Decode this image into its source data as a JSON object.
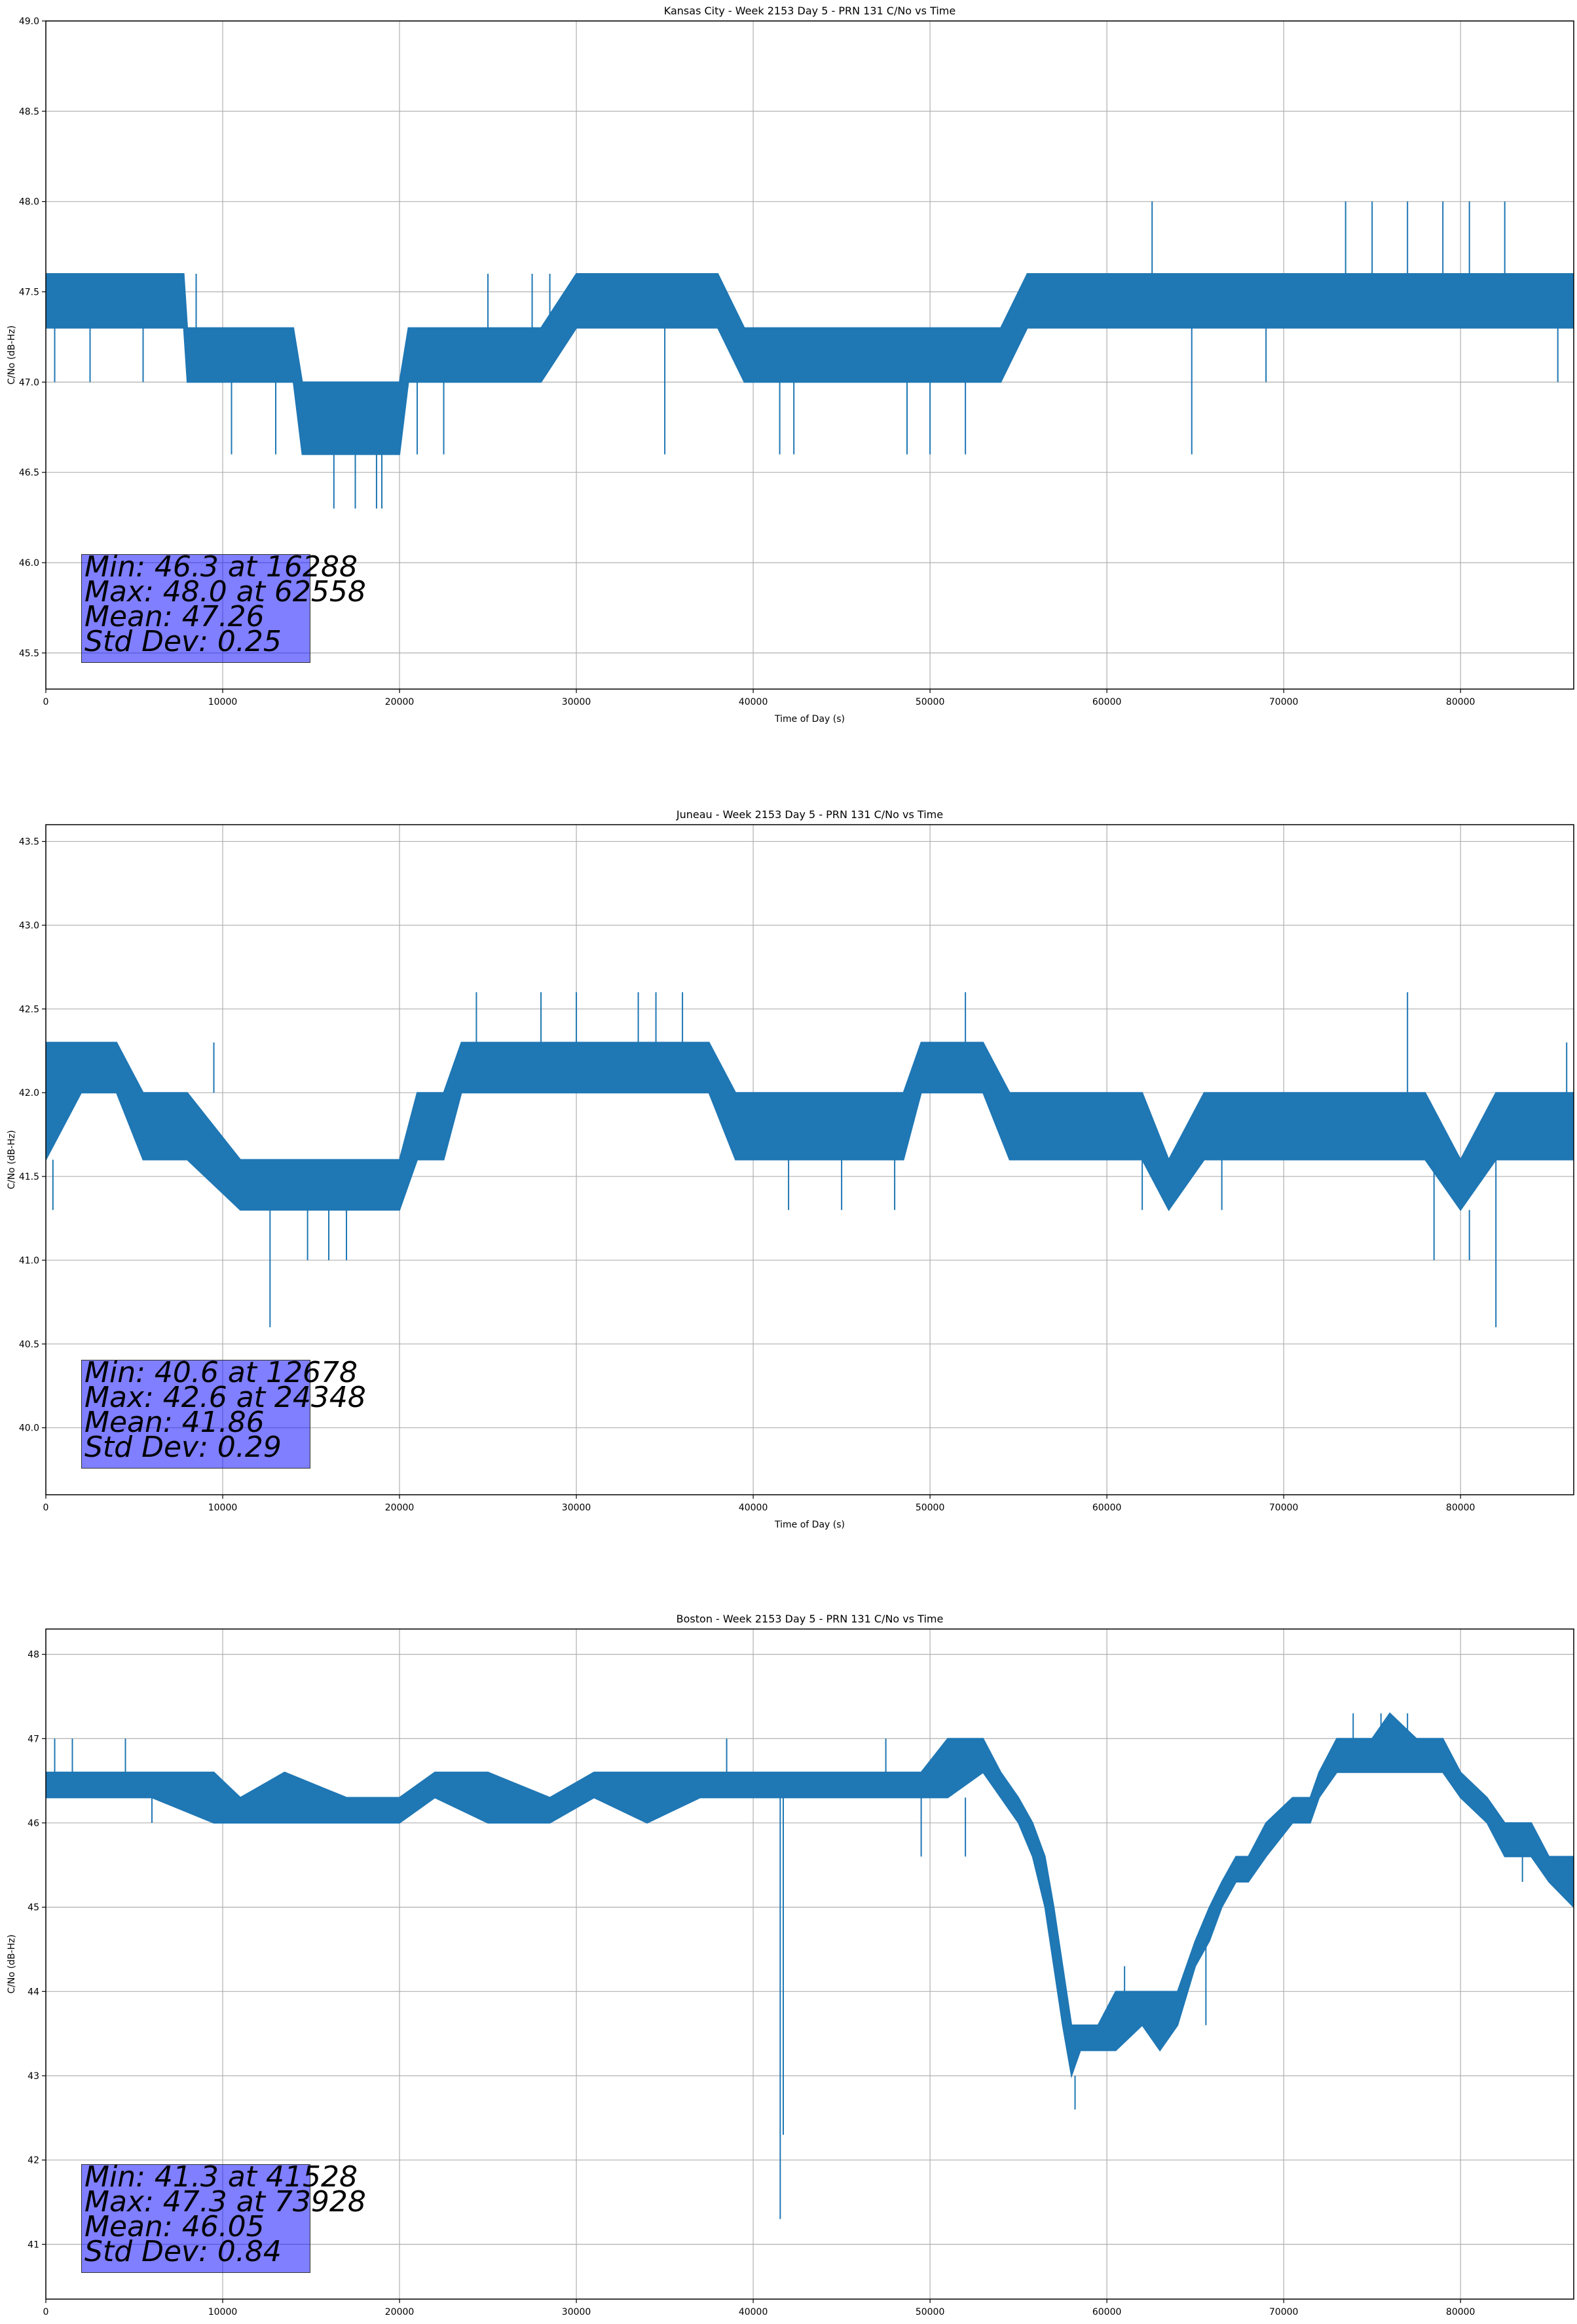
{
  "chart_data": [
    {
      "type": "line",
      "title": "Kansas City - Week 2153 Day 5 - PRN 131 C/No vs Time",
      "xlabel": "Time of Day (s)",
      "ylabel": "C/No (dB-Hz)",
      "xlim": [
        0,
        86400
      ],
      "ylim": [
        45.3,
        49.0
      ],
      "xticks": [
        0,
        10000,
        20000,
        30000,
        40000,
        50000,
        60000,
        70000,
        80000
      ],
      "yticks": [
        "45.5",
        "46.0",
        "46.5",
        "47.0",
        "47.5",
        "48.0",
        "48.5",
        "49.0"
      ],
      "grid": true,
      "color": "#1f77b4",
      "stats": [
        "Min: 46.3 at 16288",
        "Max: 48.0 at 62558",
        "Mean: 47.26",
        "Std Dev: 0.25"
      ],
      "bands": [
        [
          0,
          47.3,
          47.6
        ],
        [
          2000,
          47.3,
          47.6
        ],
        [
          4000,
          47.3,
          47.6
        ],
        [
          6000,
          47.3,
          47.6
        ],
        [
          7800,
          47.3,
          47.6
        ],
        [
          8000,
          47.0,
          47.3
        ],
        [
          10000,
          47.0,
          47.3
        ],
        [
          12000,
          47.0,
          47.3
        ],
        [
          14000,
          47.0,
          47.3
        ],
        [
          14500,
          46.6,
          47.0
        ],
        [
          16000,
          46.6,
          47.0
        ],
        [
          18000,
          46.6,
          47.0
        ],
        [
          20000,
          46.6,
          47.0
        ],
        [
          20500,
          47.0,
          47.3
        ],
        [
          22000,
          47.0,
          47.3
        ],
        [
          24000,
          47.0,
          47.3
        ],
        [
          26000,
          47.0,
          47.3
        ],
        [
          28000,
          47.0,
          47.3
        ],
        [
          30000,
          47.3,
          47.6
        ],
        [
          32000,
          47.3,
          47.6
        ],
        [
          34000,
          47.3,
          47.6
        ],
        [
          36000,
          47.3,
          47.6
        ],
        [
          38000,
          47.3,
          47.6
        ],
        [
          39500,
          47.0,
          47.3
        ],
        [
          42000,
          47.0,
          47.3
        ],
        [
          44000,
          47.0,
          47.3
        ],
        [
          46000,
          47.0,
          47.3
        ],
        [
          48000,
          47.0,
          47.3
        ],
        [
          50000,
          47.0,
          47.3
        ],
        [
          52000,
          47.0,
          47.3
        ],
        [
          54000,
          47.0,
          47.3
        ],
        [
          55500,
          47.3,
          47.6
        ],
        [
          58000,
          47.3,
          47.6
        ],
        [
          60000,
          47.3,
          47.6
        ],
        [
          62000,
          47.3,
          47.6
        ],
        [
          64000,
          47.3,
          47.6
        ],
        [
          66000,
          47.3,
          47.6
        ],
        [
          68000,
          47.3,
          47.6
        ],
        [
          70000,
          47.3,
          47.6
        ],
        [
          72000,
          47.3,
          47.6
        ],
        [
          74000,
          47.3,
          47.6
        ],
        [
          76000,
          47.3,
          47.6
        ],
        [
          78000,
          47.3,
          47.6
        ],
        [
          80000,
          47.3,
          47.6
        ],
        [
          82000,
          47.3,
          47.6
        ],
        [
          84000,
          47.3,
          47.6
        ],
        [
          86400,
          47.3,
          47.6
        ]
      ],
      "spikes": [
        [
          500,
          47.0
        ],
        [
          2500,
          47.0
        ],
        [
          5500,
          47.0
        ],
        [
          8500,
          47.6
        ],
        [
          10500,
          46.6
        ],
        [
          13000,
          46.6
        ],
        [
          16288,
          46.3
        ],
        [
          17500,
          46.3
        ],
        [
          18700,
          46.3
        ],
        [
          19000,
          46.3
        ],
        [
          21000,
          46.6
        ],
        [
          22500,
          46.6
        ],
        [
          25000,
          47.6
        ],
        [
          27500,
          47.6
        ],
        [
          28500,
          47.6
        ],
        [
          35000,
          46.6
        ],
        [
          41500,
          46.6
        ],
        [
          42300,
          46.6
        ],
        [
          48700,
          46.6
        ],
        [
          50000,
          46.6
        ],
        [
          52000,
          46.6
        ],
        [
          62558,
          48.0
        ],
        [
          64800,
          46.6
        ],
        [
          69000,
          47.0
        ],
        [
          73500,
          48.0
        ],
        [
          75000,
          48.0
        ],
        [
          77000,
          48.0
        ],
        [
          79000,
          48.0
        ],
        [
          80500,
          48.0
        ],
        [
          82500,
          48.0
        ],
        [
          85500,
          47.0
        ]
      ]
    },
    {
      "type": "line",
      "title": "Juneau - Week 2153 Day 5 - PRN 131 C/No vs Time",
      "xlabel": "Time of Day (s)",
      "ylabel": "C/No (dB-Hz)",
      "xlim": [
        0,
        86400
      ],
      "ylim": [
        39.6,
        43.6
      ],
      "xticks": [
        0,
        10000,
        20000,
        30000,
        40000,
        50000,
        60000,
        70000,
        80000
      ],
      "yticks": [
        "40.0",
        "40.5",
        "41.0",
        "41.5",
        "42.0",
        "42.5",
        "43.0",
        "43.5"
      ],
      "grid": true,
      "color": "#1f77b4",
      "stats": [
        "Min: 40.6 at 12678",
        "Max: 42.6 at 24348",
        "Mean: 41.86",
        "Std Dev: 0.29"
      ],
      "bands": [
        [
          0,
          41.6,
          42.3
        ],
        [
          2000,
          42.0,
          42.3
        ],
        [
          4000,
          42.0,
          42.3
        ],
        [
          5500,
          41.6,
          42.0
        ],
        [
          8000,
          41.6,
          42.0
        ],
        [
          11000,
          41.3,
          41.6
        ],
        [
          14000,
          41.3,
          41.6
        ],
        [
          17000,
          41.3,
          41.6
        ],
        [
          20000,
          41.3,
          41.6
        ],
        [
          21000,
          41.6,
          42.0
        ],
        [
          22500,
          41.6,
          42.0
        ],
        [
          23500,
          42.0,
          42.3
        ],
        [
          26000,
          42.0,
          42.3
        ],
        [
          30000,
          42.0,
          42.3
        ],
        [
          34000,
          42.0,
          42.3
        ],
        [
          37500,
          42.0,
          42.3
        ],
        [
          39000,
          41.6,
          42.0
        ],
        [
          43000,
          41.6,
          42.0
        ],
        [
          46000,
          41.6,
          42.0
        ],
        [
          48500,
          41.6,
          42.0
        ],
        [
          49500,
          42.0,
          42.3
        ],
        [
          53000,
          42.0,
          42.3
        ],
        [
          54500,
          41.6,
          42.0
        ],
        [
          58000,
          41.6,
          42.0
        ],
        [
          62000,
          41.6,
          42.0
        ],
        [
          63500,
          41.3,
          41.6
        ],
        [
          65500,
          41.6,
          42.0
        ],
        [
          69000,
          41.6,
          42.0
        ],
        [
          72000,
          41.6,
          42.0
        ],
        [
          75000,
          41.6,
          42.0
        ],
        [
          78000,
          41.6,
          42.0
        ],
        [
          80000,
          41.3,
          41.6
        ],
        [
          82000,
          41.6,
          42.0
        ],
        [
          84000,
          41.6,
          42.0
        ],
        [
          86400,
          41.6,
          42.0
        ]
      ],
      "spikes": [
        [
          400,
          41.3
        ],
        [
          2000,
          42.3
        ],
        [
          9500,
          42.3
        ],
        [
          12678,
          40.6
        ],
        [
          14800,
          41.0
        ],
        [
          16000,
          41.0
        ],
        [
          17000,
          41.0
        ],
        [
          24348,
          42.6
        ],
        [
          28000,
          42.6
        ],
        [
          30000,
          42.6
        ],
        [
          33500,
          42.6
        ],
        [
          34500,
          42.6
        ],
        [
          36000,
          42.6
        ],
        [
          42000,
          41.3
        ],
        [
          45000,
          41.3
        ],
        [
          48000,
          41.3
        ],
        [
          52000,
          42.6
        ],
        [
          62000,
          41.3
        ],
        [
          66500,
          41.3
        ],
        [
          77000,
          42.6
        ],
        [
          78500,
          41.0
        ],
        [
          80500,
          41.0
        ],
        [
          82000,
          40.6
        ],
        [
          86000,
          42.3
        ]
      ]
    },
    {
      "type": "line",
      "title": "Boston - Week 2153 Day 5 - PRN 131 C/No vs Time",
      "xlabel": "Time of Day (s)",
      "ylabel": "C/No (dB-Hz)",
      "xlim": [
        0,
        86400
      ],
      "ylim": [
        40.35,
        48.3
      ],
      "xticks": [
        0,
        10000,
        20000,
        30000,
        40000,
        50000,
        60000,
        70000,
        80000
      ],
      "yticks": [
        "41",
        "42",
        "43",
        "44",
        "45",
        "46",
        "47",
        "48"
      ],
      "grid": true,
      "color": "#1f77b4",
      "stats": [
        "Min: 41.3 at 41528",
        "Max: 47.3 at 73928",
        "Mean: 46.05",
        "Std Dev: 0.84"
      ],
      "bands": [
        [
          0,
          46.3,
          46.6
        ],
        [
          3000,
          46.3,
          46.6
        ],
        [
          6000,
          46.3,
          46.6
        ],
        [
          9500,
          46.0,
          46.6
        ],
        [
          11000,
          46.0,
          46.3
        ],
        [
          13500,
          46.0,
          46.6
        ],
        [
          17000,
          46.0,
          46.3
        ],
        [
          20000,
          46.0,
          46.3
        ],
        [
          22000,
          46.3,
          46.6
        ],
        [
          25000,
          46.0,
          46.6
        ],
        [
          28500,
          46.0,
          46.3
        ],
        [
          31000,
          46.3,
          46.6
        ],
        [
          34000,
          46.0,
          46.6
        ],
        [
          37000,
          46.3,
          46.6
        ],
        [
          40000,
          46.3,
          46.6
        ],
        [
          43000,
          46.3,
          46.6
        ],
        [
          46000,
          46.3,
          46.6
        ],
        [
          49500,
          46.3,
          46.6
        ],
        [
          51000,
          46.3,
          47.0
        ],
        [
          53000,
          46.6,
          47.0
        ],
        [
          54000,
          46.3,
          46.6
        ],
        [
          55000,
          46.0,
          46.3
        ],
        [
          55800,
          45.6,
          46.0
        ],
        [
          56500,
          45.0,
          45.6
        ],
        [
          57000,
          44.3,
          45.0
        ],
        [
          57500,
          43.6,
          44.3
        ],
        [
          58000,
          43.0,
          43.6
        ],
        [
          58500,
          43.3,
          43.6
        ],
        [
          59500,
          43.3,
          43.6
        ],
        [
          60500,
          43.3,
          44.0
        ],
        [
          62000,
          43.6,
          44.0
        ],
        [
          63000,
          43.3,
          44.0
        ],
        [
          64000,
          43.6,
          44.0
        ],
        [
          65000,
          44.3,
          44.6
        ],
        [
          65800,
          44.6,
          45.0
        ],
        [
          66500,
          45.0,
          45.3
        ],
        [
          67300,
          45.3,
          45.6
        ],
        [
          68000,
          45.3,
          45.6
        ],
        [
          69000,
          45.6,
          46.0
        ],
        [
          70500,
          46.0,
          46.3
        ],
        [
          71500,
          46.0,
          46.3
        ],
        [
          72000,
          46.3,
          46.6
        ],
        [
          73000,
          46.6,
          47.0
        ],
        [
          74000,
          46.6,
          47.0
        ],
        [
          75000,
          46.6,
          47.0
        ],
        [
          76000,
          46.6,
          47.3
        ],
        [
          77500,
          46.6,
          47.0
        ],
        [
          79000,
          46.6,
          47.0
        ],
        [
          80000,
          46.3,
          46.6
        ],
        [
          81500,
          46.0,
          46.3
        ],
        [
          82500,
          45.6,
          46.0
        ],
        [
          84000,
          45.6,
          46.0
        ],
        [
          85000,
          45.3,
          45.6
        ],
        [
          86400,
          45.0,
          45.6
        ]
      ],
      "spikes": [
        [
          500,
          47.0
        ],
        [
          1500,
          47.0
        ],
        [
          4500,
          47.0
        ],
        [
          6000,
          46.0
        ],
        [
          19000,
          46.0
        ],
        [
          38500,
          47.0
        ],
        [
          41528,
          41.3
        ],
        [
          41700,
          42.3
        ],
        [
          47500,
          47.0
        ],
        [
          49500,
          45.6
        ],
        [
          52000,
          45.6
        ],
        [
          58200,
          42.6
        ],
        [
          61000,
          44.3
        ],
        [
          65600,
          43.6
        ],
        [
          73928,
          47.3
        ],
        [
          75500,
          47.3
        ],
        [
          77000,
          47.3
        ],
        [
          79500,
          46.6
        ],
        [
          83500,
          45.3
        ],
        [
          85800,
          45.0
        ]
      ]
    }
  ]
}
